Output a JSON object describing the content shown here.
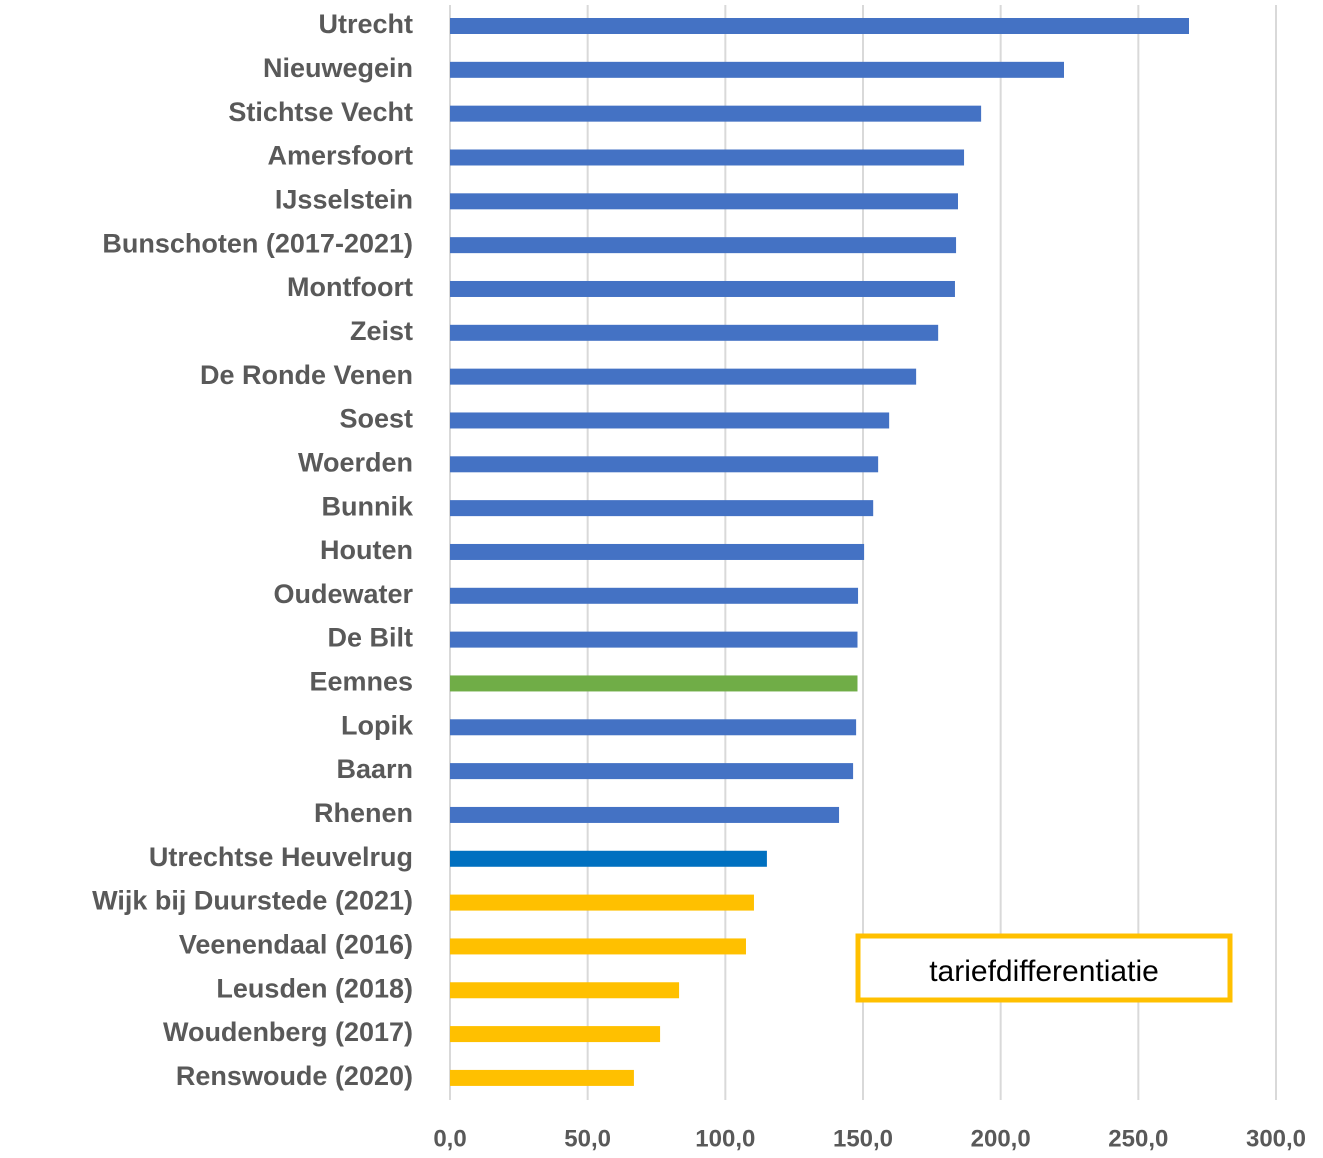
{
  "chart_data": {
    "type": "barh",
    "categories": [
      "Utrecht",
      "Nieuwegein",
      "Stichtse Vecht",
      "Amersfoort",
      "IJsselstein",
      "Bunschoten (2017-2021)",
      "Montfoort",
      "Zeist",
      "De Ronde Venen",
      "Soest",
      "Woerden",
      "Bunnik",
      "Houten",
      "Oudewater",
      "De Bilt",
      "Eemnes",
      "Lopik",
      "Baarn",
      "Rhenen",
      "Utrechtse Heuvelrug",
      "Wijk bij Duurstede (2021)",
      "Veenendaal (2016)",
      "Leusden (2018)",
      "Woudenberg (2017)",
      "Renswoude (2020)"
    ],
    "values": [
      268.4,
      223.0,
      192.9,
      186.7,
      184.5,
      183.8,
      183.4,
      177.3,
      169.3,
      159.5,
      155.5,
      153.7,
      150.4,
      148.2,
      148.0,
      148.0,
      147.5,
      146.4,
      141.3,
      115.1,
      110.4,
      107.5,
      83.2,
      76.3,
      66.8
    ],
    "colors": [
      "#4472c4",
      "#4472c4",
      "#4472c4",
      "#4472c4",
      "#4472c4",
      "#4472c4",
      "#4472c4",
      "#4472c4",
      "#4472c4",
      "#4472c4",
      "#4472c4",
      "#4472c4",
      "#4472c4",
      "#4472c4",
      "#4472c4",
      "#70ad47",
      "#4472c4",
      "#4472c4",
      "#4472c4",
      "#0070c0",
      "#ffc000",
      "#ffc000",
      "#ffc000",
      "#ffc000",
      "#ffc000"
    ],
    "xlim": [
      0,
      300
    ],
    "xticks": [
      {
        "value": 0,
        "label": "0,0"
      },
      {
        "value": 50,
        "label": "50,0"
      },
      {
        "value": 100,
        "label": "100,0"
      },
      {
        "value": 150,
        "label": "150,0"
      },
      {
        "value": 200,
        "label": "200,0"
      },
      {
        "value": 250,
        "label": "250,0"
      },
      {
        "value": 300,
        "label": "300,0"
      }
    ],
    "grid": true,
    "annotation": "tariefdifferentiatie"
  }
}
